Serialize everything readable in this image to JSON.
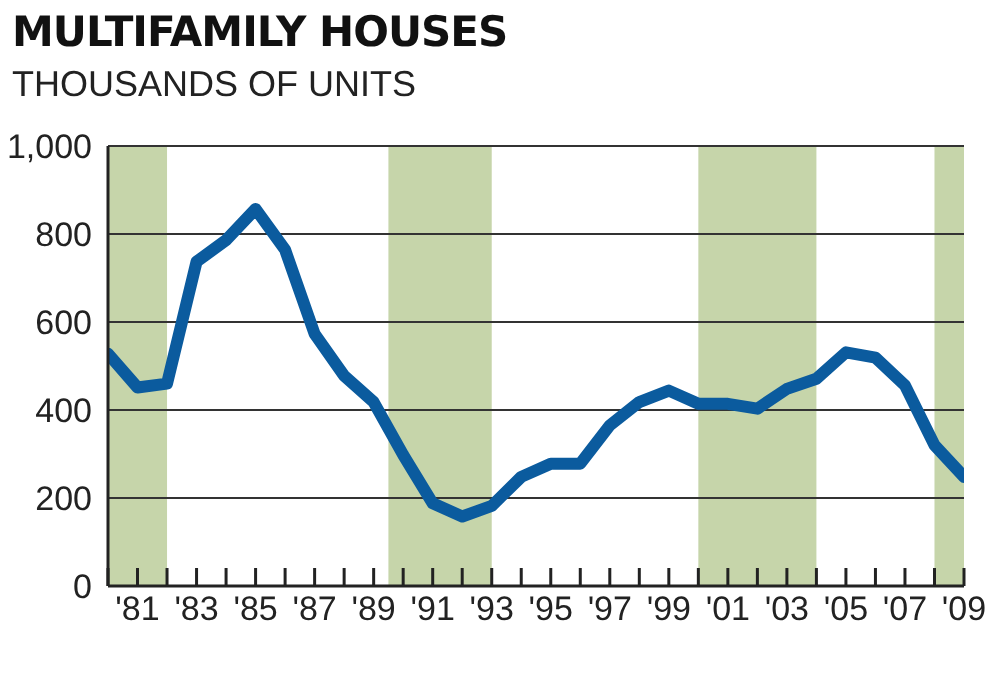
{
  "chart_data": {
    "type": "line",
    "title": "MULTIFAMILY HOUSES",
    "subtitle": "THOUSANDS OF UNITS",
    "x": [
      1980,
      1981,
      1982,
      1983,
      1984,
      1985,
      1986,
      1987,
      1988,
      1989,
      1990,
      1991,
      1992,
      1993,
      1994,
      1995,
      1996,
      1997,
      1998,
      1999,
      2000,
      2001,
      2002,
      2003,
      2004,
      2005,
      2006,
      2007,
      2008,
      2009
    ],
    "series": [
      {
        "color": "#0b5b9e",
        "values": [
          528,
          451,
          460,
          737,
          786,
          857,
          764,
          573,
          478,
          418,
          298,
          188,
          158,
          182,
          248,
          278,
          278,
          365,
          418,
          444,
          414,
          414,
          403,
          448,
          471,
          531,
          519,
          456,
          320,
          248
        ]
      }
    ],
    "xlim": [
      1980,
      2009
    ],
    "xticks": [
      {
        "value": 1980,
        "label": null
      },
      {
        "value": 1981,
        "label": "'81"
      },
      {
        "value": 1982,
        "label": null
      },
      {
        "value": 1983,
        "label": "'83"
      },
      {
        "value": 1984,
        "label": null
      },
      {
        "value": 1985,
        "label": "'85"
      },
      {
        "value": 1986,
        "label": null
      },
      {
        "value": 1987,
        "label": "'87"
      },
      {
        "value": 1988,
        "label": null
      },
      {
        "value": 1989,
        "label": "'89"
      },
      {
        "value": 1990,
        "label": null
      },
      {
        "value": 1991,
        "label": "'91"
      },
      {
        "value": 1992,
        "label": null
      },
      {
        "value": 1993,
        "label": "'93"
      },
      {
        "value": 1994,
        "label": null
      },
      {
        "value": 1995,
        "label": "'95"
      },
      {
        "value": 1996,
        "label": null
      },
      {
        "value": 1997,
        "label": "'97"
      },
      {
        "value": 1998,
        "label": null
      },
      {
        "value": 1999,
        "label": "'99"
      },
      {
        "value": 2000,
        "label": null
      },
      {
        "value": 2001,
        "label": "'01"
      },
      {
        "value": 2002,
        "label": null
      },
      {
        "value": 2003,
        "label": "'03"
      },
      {
        "value": 2004,
        "label": null
      },
      {
        "value": 2005,
        "label": "'05"
      },
      {
        "value": 2006,
        "label": null
      },
      {
        "value": 2007,
        "label": "'07"
      },
      {
        "value": 2008,
        "label": null
      },
      {
        "value": 2009,
        "label": "'09"
      }
    ],
    "ylim": [
      0,
      1000
    ],
    "yticks": [
      0,
      200,
      400,
      600,
      800,
      {
        "value": 1000,
        "label": "1,000"
      }
    ],
    "grid": "y",
    "marker": "none",
    "line_style": "solid",
    "bands": [
      {
        "axis": "x",
        "from": 1980,
        "to": 1982,
        "color": "#c6d5aa"
      },
      {
        "axis": "x",
        "from": 1989.5,
        "to": 1993,
        "color": "#c6d5aa"
      },
      {
        "axis": "x",
        "from": 2000,
        "to": 2004,
        "color": "#c6d5aa"
      },
      {
        "axis": "x",
        "from": 2008,
        "to": 2009,
        "color": "#c6d5aa"
      }
    ]
  }
}
